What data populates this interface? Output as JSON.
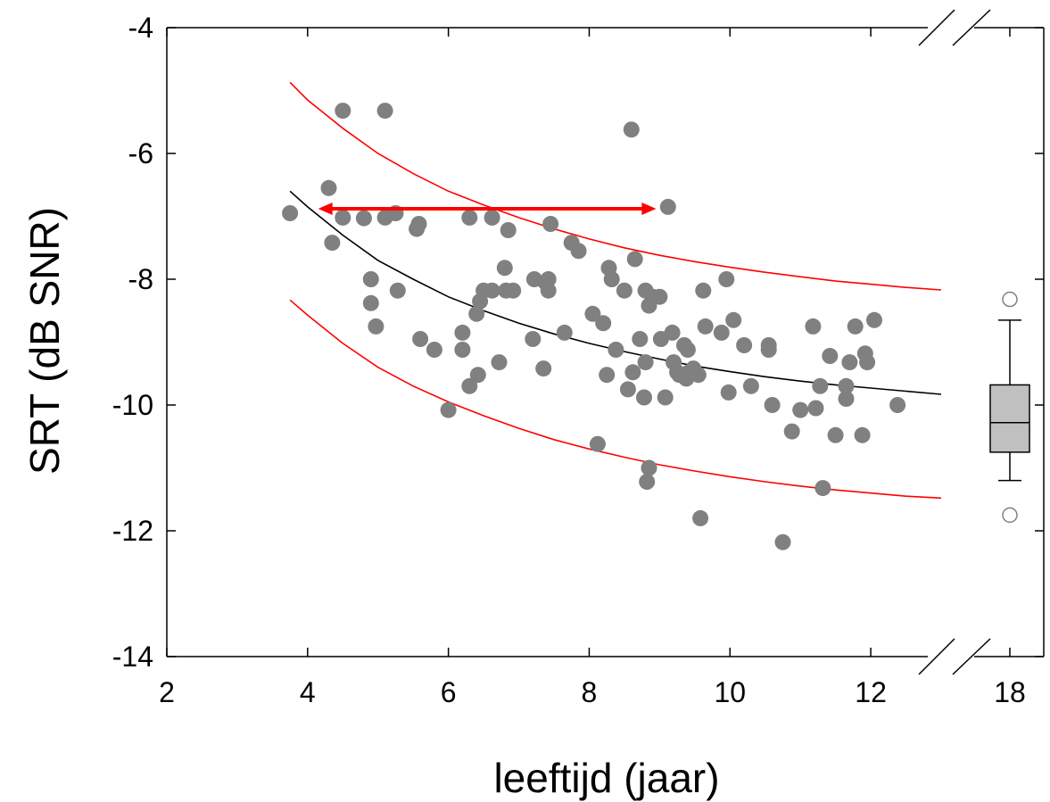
{
  "chart_data": {
    "type": "scatter",
    "xlabel": "leeftijd (jaar)",
    "ylabel": "SRT (dB SNR)",
    "xlim": [
      2,
      13
    ],
    "ylim": [
      -14,
      -4
    ],
    "x_ticks": [
      "2",
      "4",
      "6",
      "8",
      "10",
      "12"
    ],
    "y_ticks": [
      "-4",
      "-6",
      "-8",
      "-10",
      "-12",
      "-14"
    ],
    "broken_axis_label": "18",
    "axis_break": true,
    "colors": {
      "points": "#808080",
      "fit": "#000000",
      "limits": "#ff0000",
      "arrow": "#ff0000",
      "box_fill": "#c0c0c0"
    },
    "points": [
      {
        "x": 3.75,
        "y": -6.95
      },
      {
        "x": 4.3,
        "y": -6.55
      },
      {
        "x": 4.35,
        "y": -7.42
      },
      {
        "x": 4.5,
        "y": -5.32
      },
      {
        "x": 4.5,
        "y": -7.02
      },
      {
        "x": 4.8,
        "y": -7.03
      },
      {
        "x": 4.9,
        "y": -8.0
      },
      {
        "x": 4.9,
        "y": -8.38
      },
      {
        "x": 4.97,
        "y": -8.75
      },
      {
        "x": 5.1,
        "y": -5.32
      },
      {
        "x": 5.1,
        "y": -7.02
      },
      {
        "x": 5.25,
        "y": -6.95
      },
      {
        "x": 5.28,
        "y": -8.18
      },
      {
        "x": 5.55,
        "y": -7.2
      },
      {
        "x": 5.58,
        "y": -7.12
      },
      {
        "x": 5.6,
        "y": -8.95
      },
      {
        "x": 5.8,
        "y": -9.12
      },
      {
        "x": 6.0,
        "y": -10.08
      },
      {
        "x": 6.2,
        "y": -8.85
      },
      {
        "x": 6.2,
        "y": -9.12
      },
      {
        "x": 6.3,
        "y": -9.7
      },
      {
        "x": 6.3,
        "y": -7.02
      },
      {
        "x": 6.4,
        "y": -8.55
      },
      {
        "x": 6.42,
        "y": -9.52
      },
      {
        "x": 6.45,
        "y": -8.35
      },
      {
        "x": 6.5,
        "y": -8.18
      },
      {
        "x": 6.62,
        "y": -8.18
      },
      {
        "x": 6.62,
        "y": -7.02
      },
      {
        "x": 6.72,
        "y": -9.32
      },
      {
        "x": 6.8,
        "y": -7.82
      },
      {
        "x": 6.82,
        "y": -8.18
      },
      {
        "x": 6.85,
        "y": -7.22
      },
      {
        "x": 6.92,
        "y": -8.18
      },
      {
        "x": 7.2,
        "y": -8.95
      },
      {
        "x": 7.22,
        "y": -8.0
      },
      {
        "x": 7.35,
        "y": -9.42
      },
      {
        "x": 7.38,
        "y": -8.05
      },
      {
        "x": 7.42,
        "y": -8.18
      },
      {
        "x": 7.42,
        "y": -8.0
      },
      {
        "x": 7.45,
        "y": -7.12
      },
      {
        "x": 7.65,
        "y": -8.85
      },
      {
        "x": 7.75,
        "y": -7.42
      },
      {
        "x": 7.85,
        "y": -7.55
      },
      {
        "x": 8.05,
        "y": -8.55
      },
      {
        "x": 8.12,
        "y": -10.62
      },
      {
        "x": 8.2,
        "y": -8.7
      },
      {
        "x": 8.25,
        "y": -9.52
      },
      {
        "x": 8.28,
        "y": -7.82
      },
      {
        "x": 8.32,
        "y": -8.0
      },
      {
        "x": 8.38,
        "y": -9.12
      },
      {
        "x": 8.5,
        "y": -8.18
      },
      {
        "x": 8.55,
        "y": -9.75
      },
      {
        "x": 8.6,
        "y": -5.62
      },
      {
        "x": 8.62,
        "y": -9.48
      },
      {
        "x": 8.65,
        "y": -7.68
      },
      {
        "x": 8.72,
        "y": -8.95
      },
      {
        "x": 8.78,
        "y": -9.88
      },
      {
        "x": 8.8,
        "y": -9.32
      },
      {
        "x": 8.8,
        "y": -8.18
      },
      {
        "x": 8.82,
        "y": -11.22
      },
      {
        "x": 8.85,
        "y": -11.0
      },
      {
        "x": 8.85,
        "y": -8.42
      },
      {
        "x": 8.9,
        "y": -8.28
      },
      {
        "x": 9.0,
        "y": -8.28
      },
      {
        "x": 9.02,
        "y": -8.95
      },
      {
        "x": 9.08,
        "y": -9.88
      },
      {
        "x": 9.12,
        "y": -6.85
      },
      {
        "x": 9.18,
        "y": -8.85
      },
      {
        "x": 9.2,
        "y": -9.32
      },
      {
        "x": 9.25,
        "y": -9.48
      },
      {
        "x": 9.28,
        "y": -9.52
      },
      {
        "x": 9.35,
        "y": -9.05
      },
      {
        "x": 9.38,
        "y": -9.58
      },
      {
        "x": 9.4,
        "y": -9.12
      },
      {
        "x": 9.42,
        "y": -9.48
      },
      {
        "x": 9.48,
        "y": -9.42
      },
      {
        "x": 9.55,
        "y": -9.52
      },
      {
        "x": 9.58,
        "y": -11.8
      },
      {
        "x": 9.62,
        "y": -8.18
      },
      {
        "x": 9.65,
        "y": -8.75
      },
      {
        "x": 9.88,
        "y": -8.85
      },
      {
        "x": 9.95,
        "y": -8.0
      },
      {
        "x": 9.98,
        "y": -9.8
      },
      {
        "x": 10.05,
        "y": -8.65
      },
      {
        "x": 10.2,
        "y": -9.05
      },
      {
        "x": 10.3,
        "y": -9.7
      },
      {
        "x": 10.55,
        "y": -9.12
      },
      {
        "x": 10.55,
        "y": -9.05
      },
      {
        "x": 10.6,
        "y": -10.0
      },
      {
        "x": 10.75,
        "y": -12.18
      },
      {
        "x": 10.88,
        "y": -10.42
      },
      {
        "x": 11.0,
        "y": -10.08
      },
      {
        "x": 11.18,
        "y": -8.75
      },
      {
        "x": 11.22,
        "y": -10.05
      },
      {
        "x": 11.28,
        "y": -9.7
      },
      {
        "x": 11.32,
        "y": -11.32
      },
      {
        "x": 11.42,
        "y": -9.22
      },
      {
        "x": 11.5,
        "y": -10.48
      },
      {
        "x": 11.65,
        "y": -9.9
      },
      {
        "x": 11.65,
        "y": -9.7
      },
      {
        "x": 11.7,
        "y": -9.32
      },
      {
        "x": 11.78,
        "y": -8.75
      },
      {
        "x": 11.88,
        "y": -10.48
      },
      {
        "x": 11.92,
        "y": -9.18
      },
      {
        "x": 11.95,
        "y": -9.32
      },
      {
        "x": 12.05,
        "y": -8.65
      },
      {
        "x": 12.38,
        "y": -10.0
      }
    ],
    "fit_curve": {
      "x": [
        3.75,
        4,
        4.5,
        5,
        5.5,
        6,
        6.5,
        7,
        7.5,
        8,
        8.5,
        9,
        9.5,
        10,
        10.5,
        11,
        11.5,
        12,
        12.5,
        13
      ],
      "y": [
        -6.6,
        -6.85,
        -7.3,
        -7.7,
        -8.0,
        -8.28,
        -8.5,
        -8.7,
        -8.87,
        -9.02,
        -9.15,
        -9.27,
        -9.38,
        -9.47,
        -9.55,
        -9.62,
        -9.68,
        -9.73,
        -9.78,
        -9.83
      ]
    },
    "upper_limit": {
      "x": [
        3.75,
        4,
        4.5,
        5,
        5.5,
        6,
        6.5,
        7,
        7.5,
        8,
        8.5,
        9,
        9.5,
        10,
        10.5,
        11,
        11.5,
        12,
        12.5,
        13
      ],
      "y": [
        -4.87,
        -5.15,
        -5.6,
        -6.0,
        -6.32,
        -6.6,
        -6.82,
        -7.02,
        -7.2,
        -7.36,
        -7.5,
        -7.62,
        -7.72,
        -7.81,
        -7.89,
        -7.96,
        -8.03,
        -8.08,
        -8.13,
        -8.17
      ]
    },
    "lower_limit": {
      "x": [
        3.75,
        4,
        4.5,
        5,
        5.5,
        6,
        6.5,
        7,
        7.5,
        8,
        8.5,
        9,
        9.5,
        10,
        10.5,
        11,
        11.5,
        12,
        12.5,
        13
      ],
      "y": [
        -8.33,
        -8.57,
        -9.02,
        -9.4,
        -9.7,
        -9.95,
        -10.17,
        -10.37,
        -10.55,
        -10.7,
        -10.83,
        -10.95,
        -11.05,
        -11.14,
        -11.22,
        -11.29,
        -11.35,
        -11.4,
        -11.45,
        -11.48
      ]
    },
    "arrow": {
      "x_start": 4.15,
      "x_end": 8.95,
      "y": -6.88,
      "double_headed": true
    },
    "boxplot_18": {
      "whisker_high": -8.65,
      "q3": -9.68,
      "median": -10.28,
      "q1": -10.75,
      "whisker_low": -11.2,
      "outliers": [
        -8.32,
        -11.75
      ]
    }
  }
}
